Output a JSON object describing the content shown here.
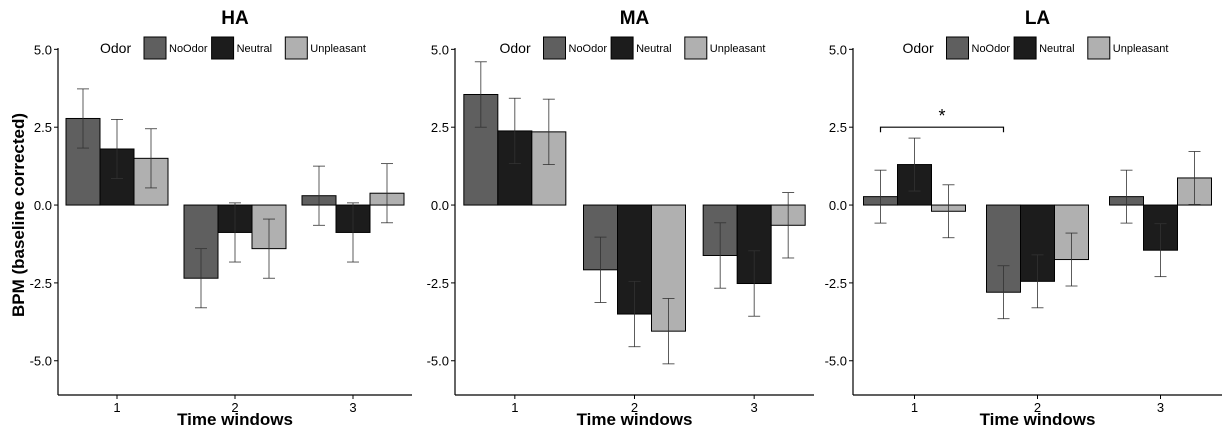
{
  "figure": {
    "ylabel": "BPM (baseline corrected)",
    "xlabel": "Time windows",
    "legend_title": "Odor"
  },
  "colors": {
    "NoOdor": "#5f5f5f",
    "Neutral": "#1c1c1c",
    "Unpleasant": "#b0b0b0"
  },
  "chart_data": [
    {
      "type": "bar",
      "title": "HA",
      "xlabel": "Time windows",
      "ylabel": "BPM (baseline corrected)",
      "categories": [
        "1",
        "2",
        "3"
      ],
      "ylim": [
        -6.1,
        5.3
      ],
      "yticks": [
        "5.0",
        "2.5",
        "0.0",
        "-2.5",
        "-5.0"
      ],
      "legend_title": "Odor",
      "legend_position": "top",
      "series": [
        {
          "name": "NoOdor",
          "values": [
            2.78,
            -2.35,
            0.3
          ],
          "err": [
            0.95,
            0.95,
            0.95
          ]
        },
        {
          "name": "Neutral",
          "values": [
            1.8,
            -0.88,
            -0.88
          ],
          "err": [
            0.95,
            0.95,
            0.95
          ]
        },
        {
          "name": "Unpleasant",
          "values": [
            1.5,
            -1.4,
            0.38
          ],
          "err": [
            0.95,
            0.95,
            0.95
          ]
        }
      ],
      "annotations": []
    },
    {
      "type": "bar",
      "title": "MA",
      "xlabel": "Time windows",
      "ylabel": "",
      "categories": [
        "1",
        "2",
        "3"
      ],
      "ylim": [
        -6.1,
        5.3
      ],
      "yticks": [
        "5.0",
        "2.5",
        "0.0",
        "-2.5",
        "-5.0"
      ],
      "legend_title": "Odor",
      "legend_position": "top",
      "series": [
        {
          "name": "NoOdor",
          "values": [
            3.55,
            -2.08,
            -1.62
          ],
          "err": [
            1.05,
            1.05,
            1.05
          ]
        },
        {
          "name": "Neutral",
          "values": [
            2.38,
            -3.5,
            -2.52
          ],
          "err": [
            1.05,
            1.05,
            1.05
          ]
        },
        {
          "name": "Unpleasant",
          "values": [
            2.35,
            -4.05,
            -0.65
          ],
          "err": [
            1.05,
            1.05,
            1.05
          ]
        }
      ],
      "annotations": []
    },
    {
      "type": "bar",
      "title": "LA",
      "xlabel": "Time windows",
      "ylabel": "",
      "categories": [
        "1",
        "2",
        "3"
      ],
      "ylim": [
        -6.1,
        5.3
      ],
      "yticks": [
        "5.0",
        "2.5",
        "0.0",
        "-2.5",
        "-5.0"
      ],
      "legend_title": "Odor",
      "legend_position": "top",
      "series": [
        {
          "name": "NoOdor",
          "values": [
            0.27,
            -2.8,
            0.27
          ],
          "err": [
            0.85,
            0.85,
            0.85
          ]
        },
        {
          "name": "Neutral",
          "values": [
            1.3,
            -2.45,
            -1.45
          ],
          "err": [
            0.85,
            0.85,
            0.85
          ]
        },
        {
          "name": "Unpleasant",
          "values": [
            -0.2,
            -1.75,
            0.87
          ],
          "err": [
            0.85,
            0.85,
            0.85
          ]
        }
      ],
      "annotations": [
        {
          "type": "significance",
          "label": "*",
          "from_category": "1",
          "to_category": "2",
          "y": 2.5
        }
      ]
    }
  ]
}
